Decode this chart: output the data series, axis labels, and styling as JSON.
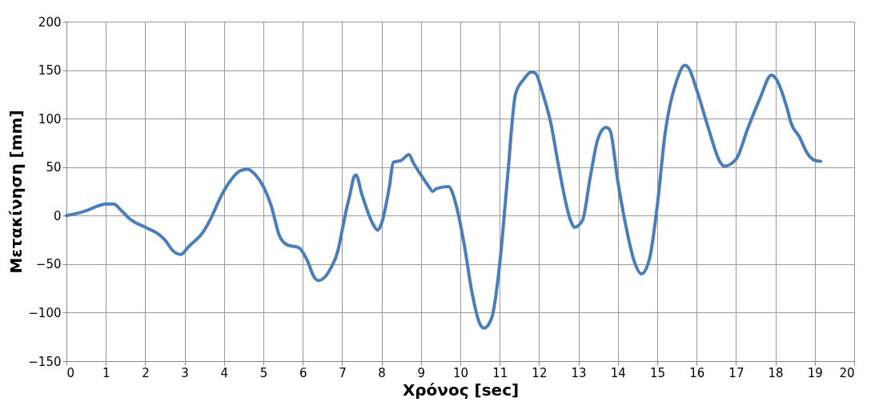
{
  "chart_data": {
    "type": "line",
    "xlabel": "Χρόνος [sec]",
    "ylabel": "Μετακίνηση [mm]",
    "x": [
      0,
      0.5,
      0.8,
      1.0,
      1.2,
      1.4,
      1.6,
      2.0,
      2.3,
      2.5,
      2.7,
      2.9,
      3.1,
      3.5,
      3.7,
      3.9,
      4.2,
      4.4,
      4.6,
      4.8,
      5.0,
      5.2,
      5.4,
      5.6,
      5.9,
      6.1,
      6.3,
      6.4,
      6.7,
      6.9,
      7.0,
      7.1,
      7.2,
      7.3,
      7.35,
      7.5,
      7.8,
      7.9,
      8.0,
      8.2,
      8.3,
      8.5,
      8.7,
      8.8,
      9.0,
      9.2,
      9.3,
      9.4,
      9.7,
      9.9,
      10.1,
      10.3,
      10.5,
      10.6,
      10.8,
      11.0,
      11.2,
      11.4,
      11.6,
      11.8,
      11.9,
      12.1,
      12.3,
      12.5,
      12.8,
      12.9,
      13.1,
      13.3,
      13.5,
      13.7,
      13.8,
      14.0,
      14.2,
      14.4,
      14.6,
      14.8,
      15.0,
      15.2,
      15.5,
      15.7,
      15.8,
      16.0,
      16.3,
      16.6,
      16.7,
      17.0,
      17.3,
      17.6,
      17.9,
      18.0,
      18.3,
      18.4,
      18.6,
      18.8,
      19.0,
      19.15
    ],
    "series": [
      {
        "color": "#4a7ebb",
        "values": [
          0,
          5,
          10,
          12,
          12,
          5,
          -3,
          -12,
          -18,
          -25,
          -36,
          -40,
          -32,
          -15,
          0,
          18,
          38,
          46,
          48,
          42,
          30,
          10,
          -20,
          -30,
          -33,
          -45,
          -64,
          -67,
          -55,
          -35,
          -15,
          5,
          22,
          40,
          42,
          22,
          -10,
          -15,
          -8,
          30,
          55,
          57,
          63,
          55,
          42,
          30,
          25,
          28,
          30,
          10,
          -30,
          -80,
          -112,
          -116,
          -105,
          -50,
          40,
          125,
          140,
          148,
          147,
          125,
          95,
          50,
          -5,
          -12,
          -5,
          40,
          80,
          91,
          88,
          35,
          -10,
          -45,
          -60,
          -45,
          10,
          85,
          140,
          155,
          152,
          130,
          90,
          55,
          51,
          58,
          90,
          120,
          145,
          142,
          110,
          95,
          82,
          65,
          57,
          56
        ]
      }
    ],
    "xlim": [
      0,
      20
    ],
    "xticks": [
      0,
      1,
      2,
      3,
      4,
      5,
      6,
      7,
      8,
      9,
      10,
      11,
      12,
      13,
      14,
      15,
      16,
      17,
      18,
      19,
      20
    ],
    "ylim": [
      -150,
      200
    ],
    "yticks": [
      -150,
      -100,
      -50,
      0,
      50,
      100,
      150,
      200
    ],
    "grid": true,
    "marker": "none",
    "line_style": "solid"
  }
}
